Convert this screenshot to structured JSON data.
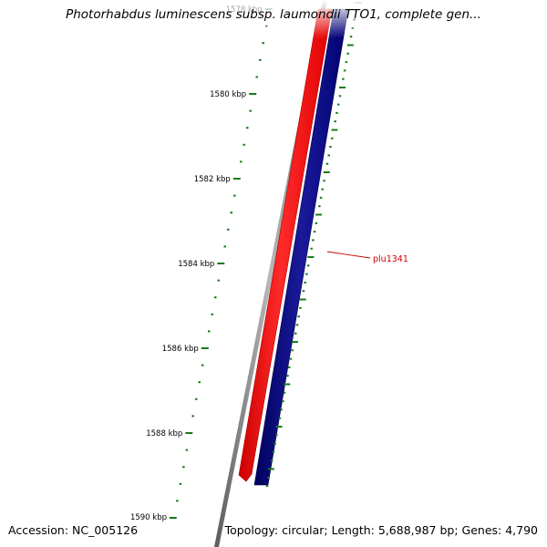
{
  "map": {
    "title": "Photorhabdus luminescens subsp. laumondii TTO1, complete gen...",
    "accession_text": "Accession: NC_005126",
    "summary_text": "Topology: circular; Length: 5,688,987 bp; Genes: 4,790"
  },
  "ticks": {
    "color": "#1a7a1a",
    "labels": [
      "1578 kbp",
      "1580 kbp",
      "1582 kbp",
      "1584 kbp",
      "1586 kbp",
      "1588 kbp",
      "1590 kbp"
    ]
  },
  "features": {
    "forward_color": "#ff0000",
    "reverse_color": "#000080",
    "backbone_color": "#808080",
    "label_color": "#cc0000",
    "gene_label": "plu1341"
  }
}
